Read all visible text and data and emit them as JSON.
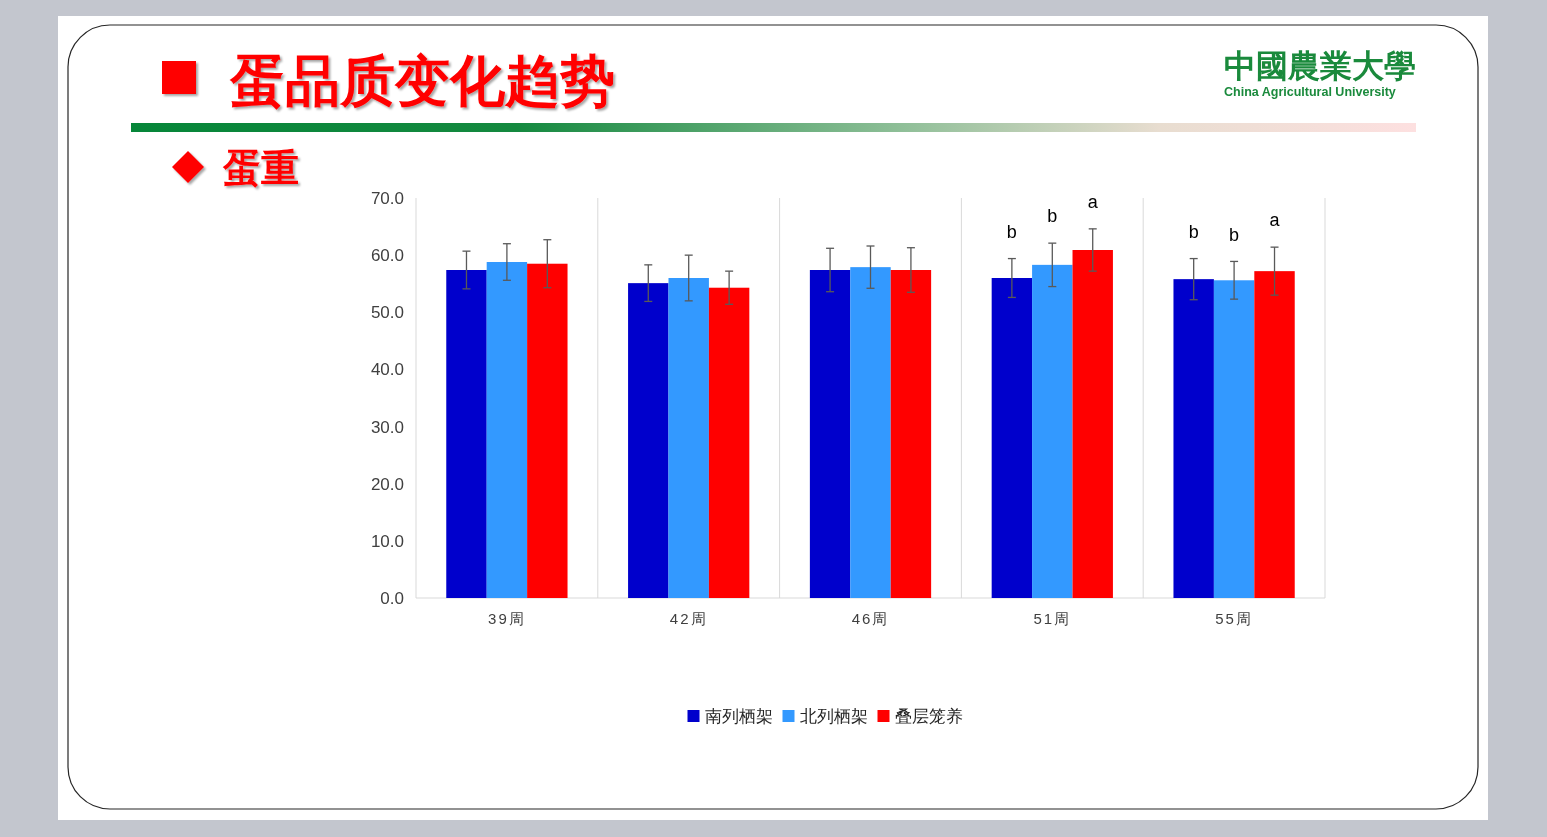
{
  "chart_data": {
    "type": "bar",
    "title": "蛋品质变化趋势",
    "subtitle": "蛋重",
    "categories": [
      "39周",
      "42周",
      "46周",
      "51周",
      "55周"
    ],
    "series": [
      {
        "name": "南列栖架",
        "color": "#0000cc",
        "values": [
          57.4,
          55.1,
          57.4,
          56.0,
          55.8
        ],
        "errors": [
          3.3,
          3.2,
          3.8,
          3.4,
          3.6
        ]
      },
      {
        "name": "北列栖架",
        "color": "#3399ff",
        "values": [
          58.8,
          56.0,
          57.9,
          58.3,
          55.6
        ],
        "errors": [
          3.2,
          4.0,
          3.7,
          3.8,
          3.3
        ]
      },
      {
        "name": "叠层笼养",
        "color": "#ff0000",
        "values": [
          58.5,
          54.3,
          57.4,
          60.9,
          57.2
        ],
        "errors": [
          4.2,
          2.9,
          3.9,
          3.7,
          4.2
        ]
      }
    ],
    "ylim": [
      0,
      70
    ],
    "yticks": [
      {
        "value": 0,
        "label": "0.0"
      },
      {
        "value": 10,
        "label": "10.0"
      },
      {
        "value": 20,
        "label": "20.0"
      },
      {
        "value": 30,
        "label": "30.0"
      },
      {
        "value": 40,
        "label": "40.0"
      },
      {
        "value": 50,
        "label": "50.0"
      },
      {
        "value": 60,
        "label": "60.0"
      },
      {
        "value": 70,
        "label": "70.0"
      }
    ],
    "grid": "x",
    "legend": "bottom",
    "annotations": [
      {
        "text": "b",
        "x": "51周",
        "y": 56.0
      },
      {
        "text": "b",
        "x": "51周",
        "y": 58.3
      },
      {
        "text": "a",
        "x": "51周",
        "y": 60.9
      },
      {
        "text": "b",
        "x": "55周",
        "y": 55.8
      },
      {
        "text": "b",
        "x": "55周",
        "y": 55.6
      },
      {
        "text": "a",
        "x": "55周",
        "y": 57.2
      },
      "中國農業大學",
      "China Agricultural University"
    ]
  }
}
